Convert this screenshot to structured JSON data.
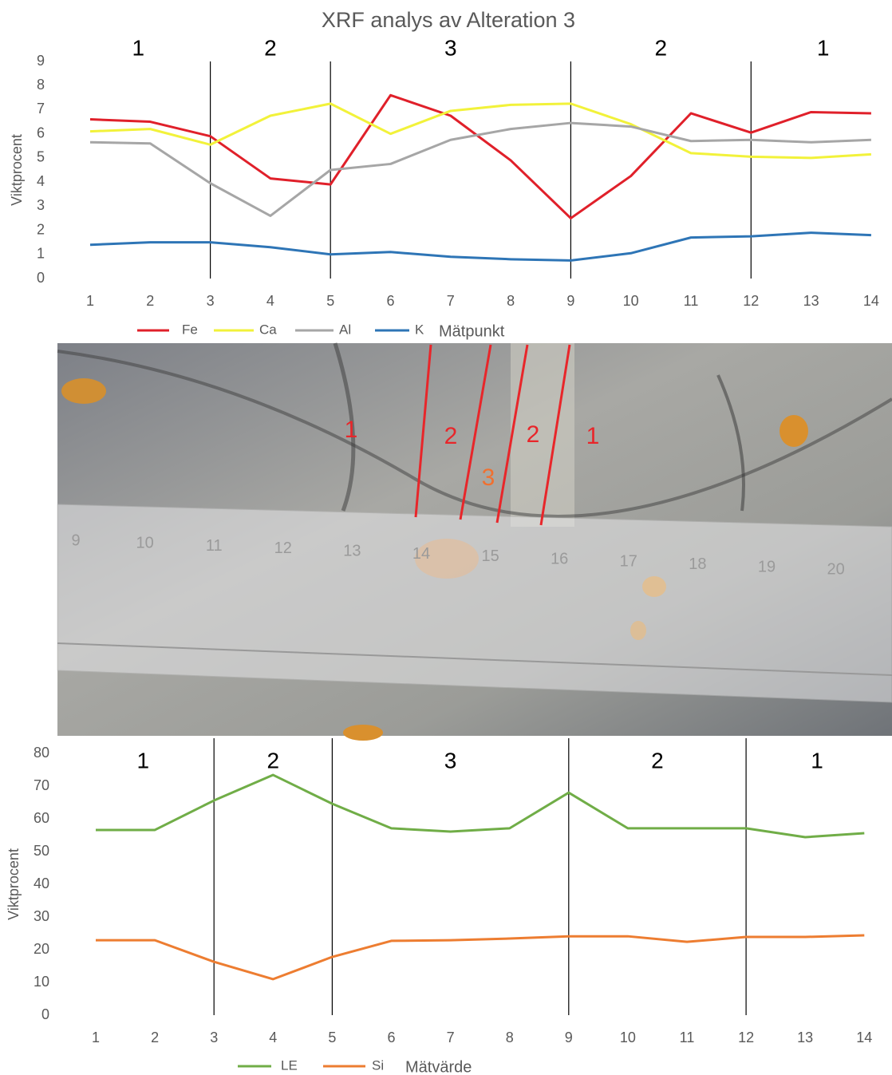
{
  "chart_data": [
    {
      "type": "line",
      "title": "XRF analys av Alteration 3",
      "y_label": "Viktprocent",
      "x_label": "Mätpunkt",
      "categories": [
        "1",
        "2",
        "3",
        "4",
        "5",
        "6",
        "7",
        "8",
        "9",
        "10",
        "11",
        "12",
        "13",
        "14"
      ],
      "ylim": [
        0,
        9
      ],
      "yticks": [
        0,
        1,
        2,
        3,
        4,
        5,
        6,
        7,
        8,
        9
      ],
      "zones": [
        "1",
        "2",
        "3",
        "2",
        "1"
      ],
      "zone_boundaries": [
        3,
        5,
        9,
        12
      ],
      "series": [
        {
          "name": "Fe",
          "color": "#e0202a",
          "values": [
            6.6,
            6.5,
            5.9,
            4.15,
            3.9,
            7.6,
            6.75,
            4.9,
            2.5,
            4.25,
            6.85,
            6.05,
            6.9,
            6.85
          ]
        },
        {
          "name": "Ca",
          "color": "#f2f23a",
          "values": [
            6.1,
            6.2,
            5.55,
            6.75,
            7.25,
            6.0,
            6.95,
            7.2,
            7.25,
            6.4,
            5.2,
            5.05,
            5.0,
            5.15
          ]
        },
        {
          "name": "Al",
          "color": "#a6a6a6",
          "values": [
            5.65,
            5.6,
            3.95,
            2.6,
            4.5,
            4.75,
            5.75,
            6.2,
            6.45,
            6.3,
            5.7,
            5.75,
            5.65,
            5.75
          ]
        },
        {
          "name": "K",
          "color": "#2e75b6",
          "values": [
            1.4,
            1.5,
            1.5,
            1.3,
            1.0,
            1.1,
            0.9,
            0.8,
            0.75,
            1.05,
            1.7,
            1.75,
            1.9,
            1.8
          ]
        }
      ]
    },
    {
      "type": "line",
      "y_label": "Viktprocent",
      "x_label": "Mätvärde",
      "categories": [
        "1",
        "2",
        "3",
        "4",
        "5",
        "6",
        "7",
        "8",
        "9",
        "10",
        "11",
        "12",
        "13",
        "14"
      ],
      "ylim": [
        0,
        80
      ],
      "yticks": [
        0,
        10,
        20,
        30,
        40,
        50,
        60,
        70,
        80
      ],
      "zones": [
        "1",
        "2",
        "3",
        "2",
        "1"
      ],
      "zone_boundaries": [
        3,
        5,
        9,
        12
      ],
      "series": [
        {
          "name": "LE",
          "color": "#70ad47",
          "values": [
            56.6,
            56.6,
            65.6,
            73.4,
            64.6,
            57.1,
            56.1,
            57.1,
            68.0,
            57.1,
            57.1,
            57.1,
            54.4,
            55.6
          ]
        },
        {
          "name": "Si",
          "color": "#ed7d31",
          "values": [
            22.9,
            22.9,
            16.3,
            11.0,
            17.8,
            22.7,
            22.9,
            23.4,
            24.1,
            24.1,
            22.4,
            23.9,
            23.9,
            24.4
          ]
        }
      ]
    }
  ],
  "photo": {
    "zone_labels": [
      "1",
      "2",
      "3",
      "2",
      "1"
    ],
    "ruler_labels": [
      "9",
      "10",
      "11",
      "12",
      "13",
      "14",
      "15",
      "16",
      "17",
      "18",
      "19",
      "20"
    ]
  }
}
